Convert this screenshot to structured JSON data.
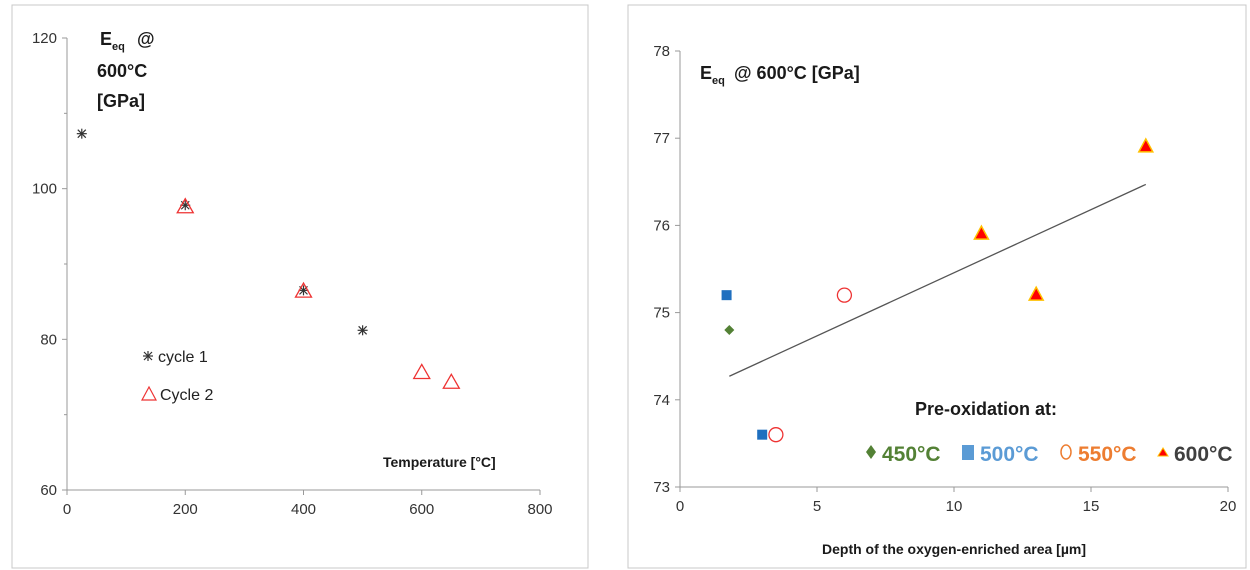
{
  "chart_data": [
    {
      "type": "scatter",
      "title_lines": [
        "E",
        "@",
        "600°C",
        "[GPa]"
      ],
      "title_sub": "eq",
      "xlabel": "Temperature [°C]",
      "xlim": [
        0,
        800
      ],
      "ylim": [
        60,
        120
      ],
      "xticks": [
        "0",
        "200",
        "400",
        "600",
        "800"
      ],
      "yticks": [
        "60",
        "80",
        "100",
        "120"
      ],
      "series": [
        {
          "name": "cycle 1",
          "marker": "asterisk",
          "color": "#333333",
          "points": [
            [
              25,
              107.3
            ],
            [
              200,
              97.8
            ],
            [
              400,
              86.5
            ],
            [
              500,
              81.2
            ]
          ]
        },
        {
          "name": "Cycle 2",
          "marker": "open-triangle",
          "color": "#ee3333",
          "points": [
            [
              200,
              97.6
            ],
            [
              400,
              86.4
            ],
            [
              600,
              75.6
            ],
            [
              650,
              74.3
            ]
          ]
        }
      ]
    },
    {
      "type": "scatter",
      "title": "E",
      "title_sub": "eq",
      "title_rest": "@ 600°C [GPa]",
      "xlabel": "Depth of the oxygen-enriched area [µm]",
      "xlim": [
        0,
        20
      ],
      "ylim": [
        73,
        78
      ],
      "xticks": [
        "0",
        "5",
        "10",
        "15",
        "20"
      ],
      "yticks": [
        "73",
        "74",
        "75",
        "76",
        "77",
        "78"
      ],
      "legend_title": "Pre-oxidation at:",
      "series": [
        {
          "name": "450°C",
          "marker": "diamond",
          "color": "#538135",
          "points": [
            [
              1.8,
              74.8
            ]
          ]
        },
        {
          "name": "500°C",
          "marker": "square",
          "color": "#1f6fbf",
          "legend_color": "#5b9bd5",
          "points": [
            [
              1.7,
              75.2
            ],
            [
              3.0,
              73.6
            ]
          ]
        },
        {
          "name": "550°C",
          "marker": "open-circle",
          "color": "#ee3333",
          "legend_color": "#ed7d31",
          "points": [
            [
              6.0,
              75.2
            ],
            [
              3.5,
              73.6
            ]
          ]
        },
        {
          "name": "600°C",
          "marker": "filled-triangle",
          "color": "#ff0000",
          "edge": "#ffc000",
          "points": [
            [
              11.0,
              75.9
            ],
            [
              13.0,
              75.2
            ],
            [
              17.0,
              76.9
            ]
          ]
        }
      ],
      "trendline": {
        "from": [
          1.8,
          74.27
        ],
        "to": [
          17.0,
          76.47
        ],
        "color": "#555555"
      }
    }
  ]
}
